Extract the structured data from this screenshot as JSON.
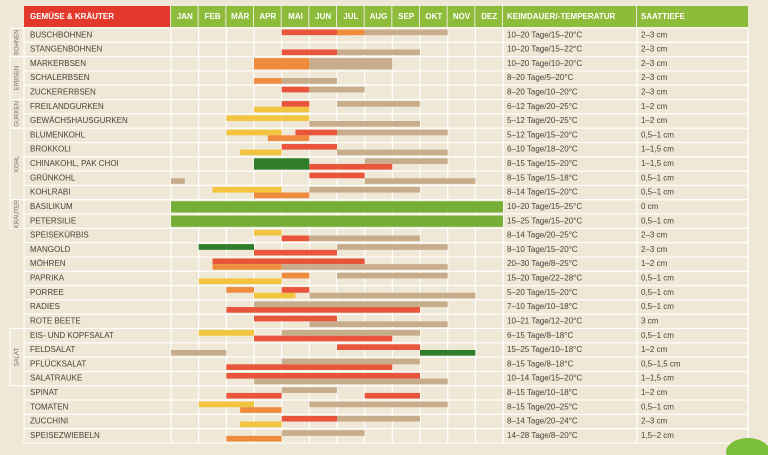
{
  "header": {
    "name": "GEMÜSE & KRÄUTER",
    "months": [
      "JAN",
      "FEB",
      "MÄR",
      "APR",
      "MAI",
      "JUN",
      "JUL",
      "AUG",
      "SEP",
      "OKT",
      "NOV",
      "DEZ"
    ],
    "germination": "KEIMDAUER/-TEMPERATUR",
    "depth": "SAATTIEFE"
  },
  "groups": [
    "BOHNEN",
    "ERBSEN",
    "GURKEN",
    "KOHL",
    "KRÄUTER",
    "SALAT"
  ],
  "rows": [
    {
      "name": "BUSCHBOHNEN",
      "germination": "10–20 Tage/15–20°C",
      "depth": "2–3 cm"
    },
    {
      "name": "STANGENBOHNEN",
      "germination": "10–20 Tage/15–22°C",
      "depth": "2–3 cm"
    },
    {
      "name": "MARKERBSEN",
      "germination": "10–20 Tage/10–20°C",
      "depth": "2–3 cm"
    },
    {
      "name": "SCHALERBSEN",
      "germination": "8–20 Tage/5–20°C",
      "depth": "2–3 cm"
    },
    {
      "name": "ZUCKERERBSEN",
      "germination": "8–20 Tage/10–20°C",
      "depth": "2–3 cm"
    },
    {
      "name": "FREILANDGURKEN",
      "germination": "6–12 Tage/20–25°C",
      "depth": "1–2 cm"
    },
    {
      "name": "GEWÄCHSHAUSGURKEN",
      "germination": "5–12 Tage/20–25°C",
      "depth": "1–2 cm"
    },
    {
      "name": "BLUMENKOHL",
      "germination": "5–12 Tage/15–20°C",
      "depth": "0,5–1 cm"
    },
    {
      "name": "BROKKOLI",
      "germination": "6–10 Tage/18–20°C",
      "depth": "1–1,5 cm"
    },
    {
      "name": "CHINAKOHL, PAK CHOI",
      "germination": "8–15 Tage/15–20°C",
      "depth": "1–1,5 cm"
    },
    {
      "name": "GRÜNKOHL",
      "germination": "8–15 Tage/15–18°C",
      "depth": "0,5–1 cm"
    },
    {
      "name": "KOHLRABI",
      "germination": "8–14 Tage/15–20°C",
      "depth": "0,5–1 cm"
    },
    {
      "name": "BASILIKUM",
      "germination": "10–20 Tage/15–25°C",
      "depth": "0 cm"
    },
    {
      "name": "PETERSILIE",
      "germination": "15–25 Tage/15–20°C",
      "depth": "0,5–1 cm"
    },
    {
      "name": "SPEISEKÜRBIS",
      "germination": "8–14 Tage/20–25°C",
      "depth": "2–3 cm"
    },
    {
      "name": "MANGOLD",
      "germination": "8–10 Tage/15–20°C",
      "depth": "2–3 cm"
    },
    {
      "name": "MÖHREN",
      "germination": "20–30 Tage/8–25°C",
      "depth": "1–2 cm"
    },
    {
      "name": "PAPRIKA",
      "germination": "15–20 Tage/22–28°C",
      "depth": "0,5–1 cm"
    },
    {
      "name": "PORREE",
      "germination": "5–20 Tage/15–20°C",
      "depth": "0,5–1 cm"
    },
    {
      "name": "RADIES",
      "germination": "7–10 Tage/10–18°C",
      "depth": "0,5–1 cm"
    },
    {
      "name": "ROTE BEETE",
      "germination": "10–21 Tage/12–20°C",
      "depth": "3 cm"
    },
    {
      "name": "EIS- UND KOPFSALAT",
      "germination": "6–15 Tage/8–18°C",
      "depth": "0,5–1 cm"
    },
    {
      "name": "FELDSALAT",
      "germination": "15–25 Tage/10–18°C",
      "depth": "1–2 cm"
    },
    {
      "name": "PFLÜCKSALAT",
      "germination": "8–15 Tage/8–18°C",
      "depth": "0,5–1,5 cm"
    },
    {
      "name": "SALATRAUKE",
      "germination": "10–14 Tage/15–20°C",
      "depth": "1–1,5 cm"
    },
    {
      "name": "SPINAT",
      "germination": "8–15 Tage/10–18°C",
      "depth": "1–2 cm"
    },
    {
      "name": "TOMATEN",
      "germination": "8–15 Tage/20–25°C",
      "depth": "0,5–1 cm"
    },
    {
      "name": "ZUCCHINI",
      "germination": "8–14 Tage/20–24°C",
      "depth": "2–3 cm"
    },
    {
      "name": "SPEISEZWIEBELN",
      "germination": "14–28 Tage/8–20°C",
      "depth": "1,5–2 cm"
    }
  ]
}
